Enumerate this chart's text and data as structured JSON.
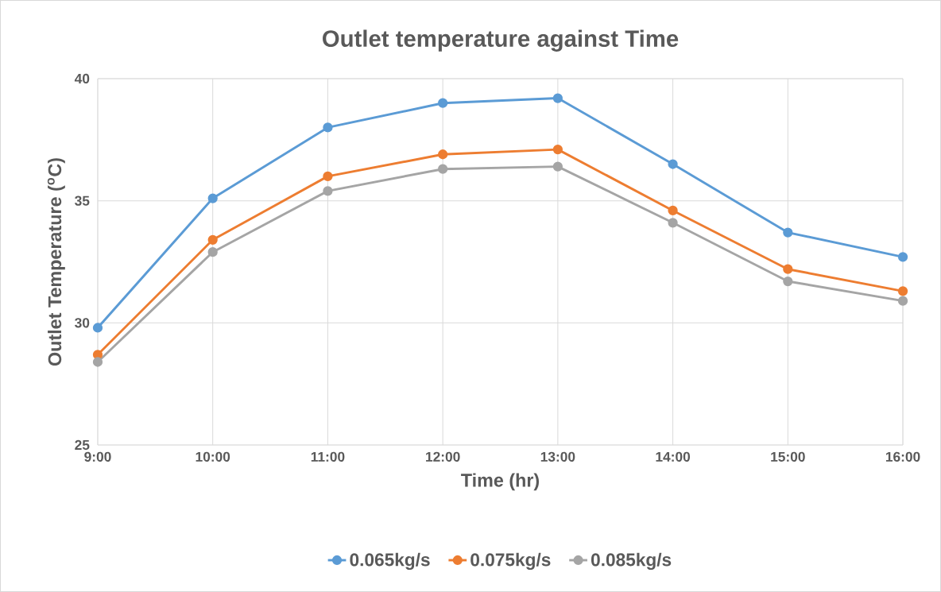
{
  "chart_data": {
    "type": "line",
    "title": "Outlet temperature against Time",
    "xlabel": "Time (hr)",
    "ylabel": "Outlet Temperature ($^{o}$C)",
    "x": [
      9,
      10,
      11,
      12,
      13,
      14,
      15,
      16
    ],
    "series": [
      {
        "name": "0.065kg/s",
        "color": "#5b9bd5",
        "values": [
          29.8,
          35.1,
          38.0,
          39.0,
          39.2,
          36.5,
          33.7,
          32.7
        ]
      },
      {
        "name": "0.075kg/s",
        "color": "#ed7d31",
        "values": [
          28.7,
          33.4,
          36.0,
          36.9,
          37.1,
          34.6,
          32.2,
          31.3
        ]
      },
      {
        "name": "0.085kg/s",
        "color": "#a5a5a5",
        "values": [
          28.4,
          32.9,
          35.4,
          36.3,
          36.4,
          34.1,
          31.7,
          30.9
        ]
      }
    ],
    "xlim": [
      9,
      16
    ],
    "ylim": [
      25,
      40
    ],
    "xticks": [
      {
        "value": 9,
        "label": "9:00"
      },
      {
        "value": 10,
        "label": "10:00"
      },
      {
        "value": 11,
        "label": "11:00"
      },
      {
        "value": 12,
        "label": "12:00"
      },
      {
        "value": 13,
        "label": "13:00"
      },
      {
        "value": 14,
        "label": "14:00"
      },
      {
        "value": 15,
        "label": "15:00"
      },
      {
        "value": 16,
        "label": "16:00"
      }
    ],
    "yticks": [
      25,
      30,
      35,
      40
    ],
    "grid": true,
    "legend": "bottom",
    "marker": "circle",
    "line_style": "solid"
  }
}
